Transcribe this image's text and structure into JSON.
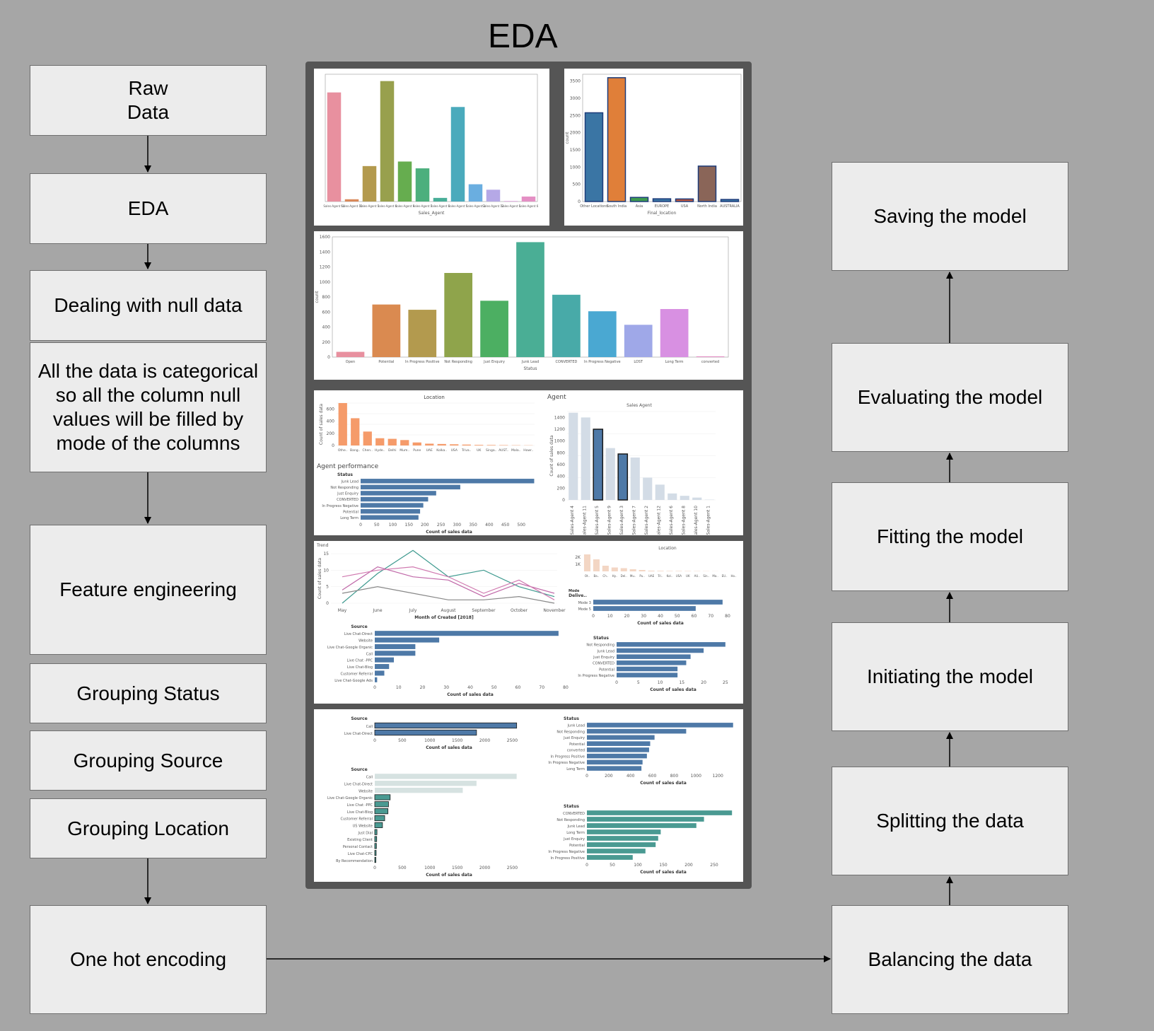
{
  "title": "EDA",
  "left_flow": [
    {
      "label": "Raw\nData"
    },
    {
      "label": "EDA"
    },
    {
      "label": "Dealing with null data"
    },
    {
      "label": "All the data is categorical so all the column null values will be filled by mode of the columns"
    },
    {
      "label": "Feature engineering"
    },
    {
      "label": "Grouping Status"
    },
    {
      "label": "Grouping Source"
    },
    {
      "label": "Grouping Location"
    },
    {
      "label": "One hot encoding"
    }
  ],
  "right_flow": [
    {
      "label": "Saving the model"
    },
    {
      "label": "Evaluating the model"
    },
    {
      "label": "Fitting the model"
    },
    {
      "label": "Initiating the model"
    },
    {
      "label": "Splitting the data"
    },
    {
      "label": "Balancing the data"
    }
  ],
  "chart_data": [
    {
      "type": "bar",
      "xlabel": "Sales_Agent",
      "categories": [
        "Sales-Agent 11",
        "Sales-Agent 10",
        "Sales-Agent 3",
        "Sales-Agent 4",
        "Sales-Agent 9",
        "Sales-Agent 7",
        "Sales-Agent 8",
        "Sales-Agent 5",
        "Sales-Agent 2",
        "Sales-Agent 12",
        "Sales-Agent 1",
        "Sales-Agent 6"
      ],
      "values": [
        240,
        5,
        78,
        265,
        88,
        73,
        8,
        208,
        38,
        26,
        1,
        11
      ],
      "ylim": [
        0,
        280
      ],
      "colors": [
        "#e8909f",
        "#d9895a",
        "#b39a4e",
        "#98a04d",
        "#66ad4f",
        "#4caf7d",
        "#48ae98",
        "#4aaabc",
        "#6aaee0",
        "#b5a8e6",
        "#d98ed9",
        "#e48fc4"
      ]
    },
    {
      "type": "bar",
      "xlabel": "Final_location",
      "ylabel": "count",
      "categories": [
        "Other Locations",
        "South India",
        "Asia",
        "EUROPE",
        "USA",
        "North India",
        "AUSTRALIA"
      ],
      "values": [
        2580,
        3600,
        120,
        80,
        75,
        1030,
        60
      ],
      "yticks": [
        "0",
        "500",
        "1000",
        "1500",
        "2000",
        "2500",
        "3000",
        "3500"
      ],
      "ylim": [
        0,
        3700
      ],
      "colors": [
        "#3a75a4",
        "#e07f39",
        "#3e9b50",
        "#3a75a4",
        "#c0543a",
        "#8a6558",
        "#3a75a4"
      ]
    },
    {
      "type": "bar",
      "xlabel": "Status",
      "ylabel": "count",
      "categories": [
        "Open",
        "Potential",
        "In Progress Positive",
        "Not Responding",
        "Just Enquiry",
        "Junk Lead",
        "CONVERTED",
        "In Progress Negative",
        "LOST",
        "Long Term",
        "converted"
      ],
      "values": [
        70,
        700,
        630,
        1120,
        750,
        1530,
        830,
        610,
        430,
        640,
        10
      ],
      "yticks": [
        "0",
        "200",
        "400",
        "600",
        "800",
        "1000",
        "1200",
        "1400",
        "1600"
      ],
      "ylim": [
        0,
        1600
      ],
      "colors": [
        "#e8909f",
        "#da8a50",
        "#b39a4e",
        "#8fa44b",
        "#4caf62",
        "#4aae95",
        "#48aaa8",
        "#4aa8d2",
        "#9fa8e8",
        "#d890e2",
        "#e48fc4"
      ]
    },
    {
      "type": "bar",
      "title": "Location",
      "ylabel": "Count of sales data",
      "categories": [
        "Othe..",
        "Bang..",
        "Chen..",
        "Hyde..",
        "Delhi",
        "Mum..",
        "Pune",
        "UAE",
        "Kolka..",
        "USA",
        "Triva..",
        "UK",
        "Singa..",
        "AUST..",
        "Mala..",
        "Howr.."
      ],
      "values": [
        700,
        450,
        230,
        120,
        110,
        90,
        50,
        30,
        25,
        20,
        15,
        10,
        8,
        6,
        4,
        3
      ],
      "yticks": [
        "0",
        "200",
        "400",
        "600"
      ],
      "ylim": [
        0,
        700
      ]
    },
    {
      "type": "bar",
      "title": "Agent performance",
      "ylabel": "Status",
      "xlabel": "Count of sales data",
      "categories": [
        "Junk Lead",
        "Not Responding",
        "Just Enquiry",
        "CONVERTED",
        "In Progress Negative",
        "Potential",
        "Long Term"
      ],
      "values": [
        540,
        310,
        235,
        210,
        195,
        185,
        180
      ],
      "xticks": [
        "0",
        "50",
        "100",
        "150",
        "200",
        "250",
        "300",
        "350",
        "400",
        "450",
        "500"
      ],
      "xlim": [
        0,
        550
      ]
    },
    {
      "type": "bar",
      "title": "Agent",
      "subtitle": "Sales Agent",
      "ylabel": "Count of sales data",
      "categories": [
        "Sales-Agent 4",
        "Sales-Agent 11",
        "Sales-Agent 5",
        "Sales-Agent 9",
        "Sales-Agent 3",
        "Sales-Agent 7",
        "Sales-Agent 2",
        "Sales-Agent 12",
        "Sales-Agent 6",
        "Sales-Agent 8",
        "Sales-Agent 10",
        "Sales-Agent 1"
      ],
      "values": [
        1480,
        1400,
        1200,
        880,
        780,
        720,
        380,
        260,
        110,
        70,
        40,
        5
      ],
      "yticks": [
        "0",
        "200",
        "400",
        "600",
        "800",
        "1000",
        "1200",
        "1400"
      ],
      "ylim": [
        0,
        1500
      ],
      "highlight": [
        "Sales-Agent 5",
        "Sales-Agent 3"
      ]
    },
    {
      "type": "line",
      "title": "Trend",
      "ylabel": "Count of sales data",
      "xlabel": "Month of Created [2018]",
      "x": [
        "May",
        "June",
        "July",
        "August",
        "September",
        "October",
        "November"
      ],
      "yticks": [
        "0",
        "5",
        "10",
        "15"
      ],
      "ylim": [
        0,
        15
      ],
      "series": [
        {
          "color": "#3e9a8f",
          "values": [
            0,
            9,
            16,
            8,
            10,
            5,
            2
          ]
        },
        {
          "color": "#c068a8",
          "values": [
            4,
            11,
            8,
            7,
            2,
            6,
            3
          ]
        },
        {
          "color": "#d07ab0",
          "values": [
            8,
            10,
            11,
            8,
            3,
            7,
            1
          ]
        },
        {
          "color": "#888",
          "values": [
            3,
            5,
            3,
            1,
            1,
            2,
            0
          ]
        }
      ]
    },
    {
      "type": "bar",
      "title": "Location",
      "categories": [
        "Ot..",
        "Ba..",
        "Ch..",
        "Hy..",
        "Del..",
        "Mu..",
        "Pu..",
        "UAE",
        "Tri..",
        "Kol..",
        "USA",
        "UK",
        "AU..",
        "Sin..",
        "Ma..",
        "EU..",
        "Ho.."
      ],
      "values": [
        2400,
        1700,
        800,
        550,
        450,
        300,
        200,
        100,
        80,
        60,
        60,
        50,
        40,
        30,
        20,
        10,
        5
      ],
      "yticks": [
        "1K",
        "2K"
      ],
      "ylim": [
        0,
        2500
      ]
    },
    {
      "type": "bar",
      "title": "Mode",
      "ylabel": "Delive..",
      "xlabel": "Count of sales data",
      "categories": [
        "Mode 3",
        "Mode 5"
      ],
      "values": [
        77,
        61
      ],
      "xticks": [
        "0",
        "10",
        "20",
        "30",
        "40",
        "50",
        "60",
        "70",
        "80"
      ],
      "xlim": [
        0,
        80
      ]
    },
    {
      "type": "bar",
      "ylabel": "Source",
      "xlabel": "Count of sales data",
      "categories": [
        "Live Chat-Direct",
        "Website",
        "Live Chat-Google Organic",
        "Call",
        "Live Chat -PPC",
        "Live Chat-Blog",
        "Customer Referral",
        "Live Chat-Google Ads"
      ],
      "values": [
        77,
        27,
        17,
        17,
        8,
        6,
        4,
        1
      ],
      "xticks": [
        "0",
        "10",
        "20",
        "30",
        "40",
        "50",
        "60",
        "70",
        "80"
      ],
      "xlim": [
        0,
        80
      ]
    },
    {
      "type": "bar",
      "ylabel": "Status",
      "xlabel": "Count of sales data",
      "categories": [
        "Not Responding",
        "Junk Lead",
        "Just Enquiry",
        "CONVERTED",
        "Potential",
        "In Progress Negative"
      ],
      "values": [
        25,
        20,
        17,
        16,
        14,
        14
      ],
      "xticks": [
        "0",
        "5",
        "10",
        "15",
        "20",
        "25"
      ],
      "xlim": [
        0,
        26
      ]
    },
    {
      "type": "bar",
      "ylabel": "Source",
      "xlabel": "Count of sales data",
      "categories": [
        "Call",
        "Live Chat-Direct"
      ],
      "values": [
        2580,
        1850
      ],
      "xticks": [
        "0",
        "500",
        "1000",
        "1500",
        "2000",
        "2500"
      ],
      "xlim": [
        0,
        2700
      ]
    },
    {
      "type": "bar",
      "ylabel": "Status",
      "xlabel": "Count of sales data",
      "categories": [
        "Junk Lead",
        "Not Responding",
        "Just Enquiry",
        "Potential",
        "converted",
        "In Progress Positive",
        "In Progress Negative",
        "Long Term"
      ],
      "values": [
        1340,
        910,
        620,
        580,
        570,
        550,
        510,
        500
      ],
      "xticks": [
        "0",
        "200",
        "400",
        "600",
        "800",
        "1000",
        "1200"
      ],
      "xlim": [
        0,
        1400
      ]
    },
    {
      "type": "bar",
      "ylabel": "Source",
      "xlabel": "Count of sales data",
      "categories": [
        "Call",
        "Live Chat-Direct",
        "Website",
        "Live Chat-Google Organic",
        "Live Chat -PPC",
        "Live Chat-Blog",
        "Customer Referral",
        "US Website",
        "Just Dial",
        "Existing Client",
        "Personal Contact",
        "Live Chat-CPC",
        "By Recommendation"
      ],
      "values": [
        2580,
        1850,
        1600,
        280,
        250,
        240,
        180,
        140,
        40,
        35,
        30,
        25,
        20
      ],
      "xticks": [
        "0",
        "500",
        "1000",
        "1500",
        "2000",
        "2500"
      ],
      "xlim": [
        0,
        2700
      ]
    },
    {
      "type": "bar",
      "ylabel": "Status",
      "xlabel": "Count of sales data",
      "categories": [
        "CONVERTED",
        "Not Responding",
        "Junk Lead",
        "Long Term",
        "Just Enquiry",
        "Potential",
        "In Progress Negative",
        "In Progress Positive"
      ],
      "values": [
        285,
        230,
        215,
        145,
        140,
        135,
        115,
        90
      ],
      "xticks": [
        "0",
        "50",
        "100",
        "150",
        "200",
        "250"
      ],
      "xlim": [
        0,
        300
      ]
    }
  ]
}
